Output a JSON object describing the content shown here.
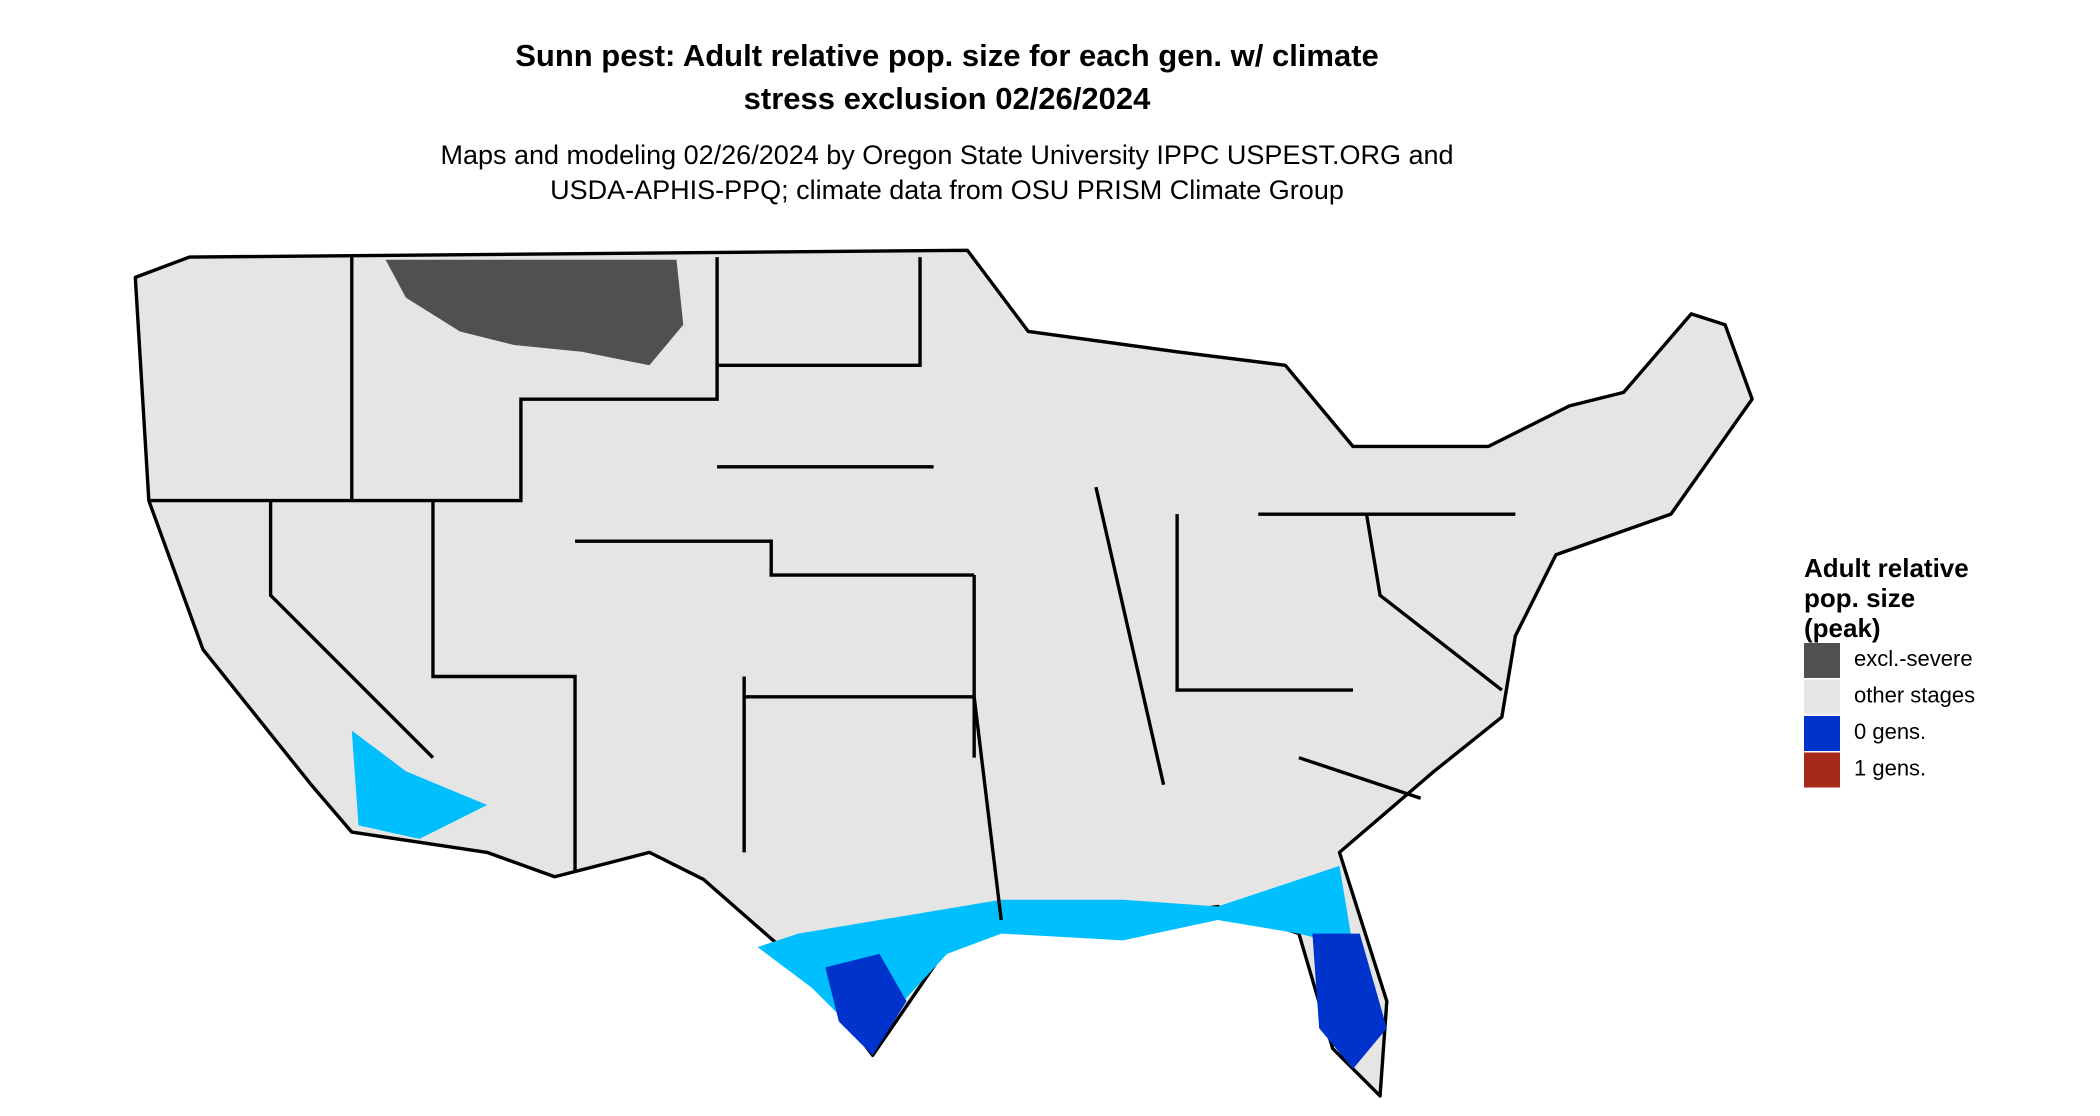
{
  "title": [
    "Sunn pest: Adult relative pop. size for each gen. w/ climate",
    "stress exclusion 02/26/2024"
  ],
  "subtitle": [
    "Maps and modeling 02/26/2024 by Oregon State University IPPC USPEST.ORG and",
    "USDA-APHIS-PPQ; climate data from OSU PRISM Climate Group"
  ],
  "legend": {
    "title": [
      "Adult relative",
      "pop. size",
      "(peak)"
    ],
    "items": [
      {
        "label": "excl.-severe",
        "color": "#505050"
      },
      {
        "label": "other stages",
        "color": "#e5e5e5"
      },
      {
        "label": "0 gens.",
        "color": "#0033cc"
      },
      {
        "label": "1 gens.",
        "color": "#a52a1a"
      }
    ]
  }
}
